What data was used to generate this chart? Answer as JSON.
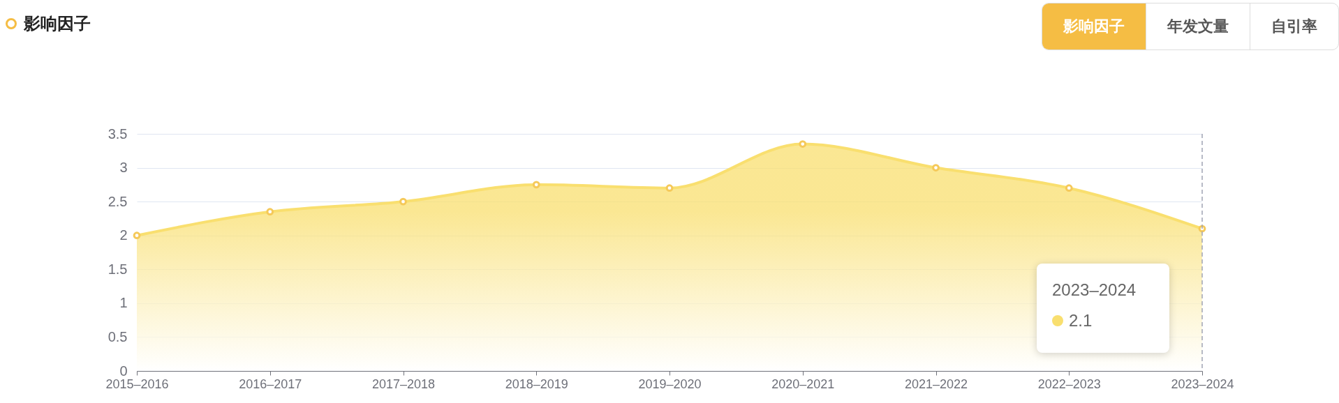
{
  "chart_data": {
    "type": "area",
    "title": "影响因子",
    "categories": [
      "2015–2016",
      "2016–2017",
      "2017–2018",
      "2018–2019",
      "2019–2020",
      "2020–2021",
      "2021–2022",
      "2022–2023",
      "2023–2024"
    ],
    "series": [
      {
        "color": "#f9df6f",
        "values": [
          2,
          2.35,
          2.5,
          2.75,
          2.7,
          3.35,
          3,
          2.7,
          2.1
        ]
      }
    ],
    "ylim": [
      0,
      3.5
    ],
    "yticks": [
      0,
      0.5,
      1,
      1.5,
      2,
      2.5,
      3,
      3.5
    ],
    "grid": "y",
    "marker": "circle",
    "ref_lines": [
      {
        "axis": "x",
        "value": "2023–2024",
        "line_style": "dashed",
        "color": "#a0a4b4"
      }
    ],
    "annotations": [
      "影响因子",
      "年发文量",
      "自引率",
      "2023–2024",
      "2.1"
    ]
  }
}
